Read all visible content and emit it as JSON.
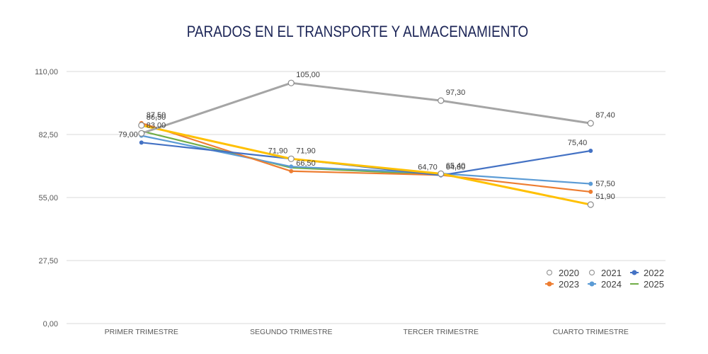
{
  "chart_data": {
    "type": "line",
    "title": "PARADOS EN EL TRANSPORTE Y ALMACENAMIENTO",
    "xlabel": "",
    "ylabel": "",
    "categories": [
      "PRIMER TRIMESTRE",
      "SEGUNDO TRIMESTRE",
      "TERCER TRIMESTRE",
      "CUARTO TRIMESTRE"
    ],
    "ylim": [
      0,
      110
    ],
    "yticks": [
      0,
      27.5,
      55,
      82.5,
      110
    ],
    "ytick_labels": [
      "0,00",
      "27,50",
      "55,00",
      "82,50",
      "110,00"
    ],
    "grid": true,
    "legend_position": "bottom-right",
    "series": [
      {
        "name": "2020",
        "color": "#A5A5A5",
        "marker": "hollow-circle",
        "values": [
          83.0,
          105.0,
          97.3,
          87.4
        ],
        "labels": [
          "83,00",
          "105,00",
          "97,30",
          "87,40"
        ],
        "label_position": "above-right"
      },
      {
        "name": "2021",
        "color": "#FFC000",
        "marker": "hollow-circle",
        "values": [
          86.5,
          71.9,
          65.4,
          51.9
        ],
        "labels": [
          "86,50",
          "71,90",
          "65,40",
          "51,90"
        ],
        "label_position": "above-right"
      },
      {
        "name": "2022",
        "color": "#4472C4",
        "marker": "filled-circle",
        "values": [
          79.0,
          71.9,
          64.7,
          75.4
        ],
        "labels": [
          "79,00",
          "71,90",
          "64,70",
          "75,40"
        ],
        "label_position": "above-left"
      },
      {
        "name": "2023",
        "color": "#ED7D31",
        "marker": "filled-circle",
        "values": [
          87.5,
          66.5,
          64.8,
          57.5
        ],
        "labels": [
          "87,50",
          "66,50",
          "64,80",
          "57,50"
        ],
        "label_position": "above-right"
      },
      {
        "name": "2024",
        "color": "#5B9BD5",
        "marker": "filled-circle",
        "values": [
          82.0,
          68.5,
          65.5,
          61.0
        ],
        "labels": [],
        "label_position": "none"
      },
      {
        "name": "2025",
        "color": "#70AD47",
        "marker": "none",
        "values": [
          84.0,
          68.0,
          65.0,
          null
        ],
        "labels": [],
        "label_position": "none"
      }
    ]
  }
}
